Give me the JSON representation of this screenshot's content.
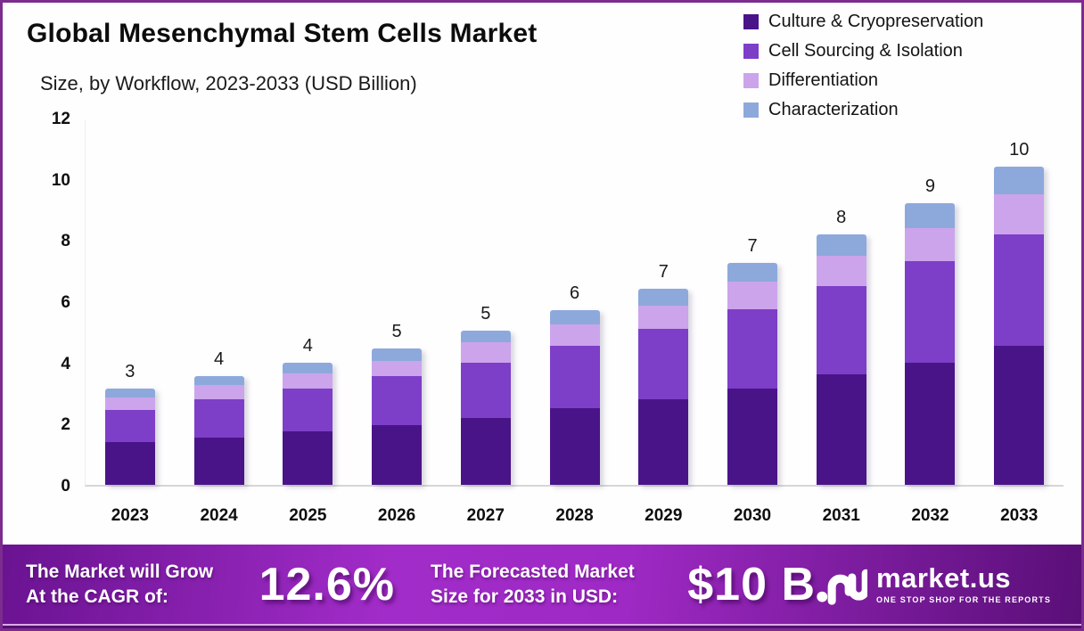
{
  "header": {
    "title": "Global Mesenchymal Stem Cells Market",
    "subtitle": "Size, by Workflow, 2023-2033 (USD Billion)"
  },
  "chart_data": {
    "type": "bar",
    "stacked": true,
    "title": "Global Mesenchymal Stem Cells Market",
    "subtitle": "Size, by Workflow, 2023-2033 (USD Billion)",
    "unit": "USD Billion",
    "categories": [
      "2023",
      "2024",
      "2025",
      "2026",
      "2027",
      "2028",
      "2029",
      "2030",
      "2031",
      "2032",
      "2033"
    ],
    "series": [
      {
        "name": "Culture & Cryopreservation",
        "color": "#4A1489",
        "values": [
          1.4,
          1.55,
          1.75,
          1.95,
          2.2,
          2.5,
          2.8,
          3.15,
          3.6,
          4.0,
          4.55
        ]
      },
      {
        "name": "Cell Sourcing & Isolation",
        "color": "#7D3EC8",
        "values": [
          1.05,
          1.25,
          1.4,
          1.6,
          1.8,
          2.05,
          2.3,
          2.6,
          2.9,
          3.3,
          3.65
        ]
      },
      {
        "name": "Differentiation",
        "color": "#CCA4EB",
        "values": [
          0.4,
          0.45,
          0.5,
          0.5,
          0.65,
          0.7,
          0.75,
          0.9,
          1.0,
          1.1,
          1.3
        ]
      },
      {
        "name": "Characterization",
        "color": "#8DA9DC",
        "values": [
          0.3,
          0.3,
          0.35,
          0.4,
          0.4,
          0.45,
          0.55,
          0.6,
          0.7,
          0.8,
          0.9
        ]
      }
    ],
    "total_labels": [
      "3",
      "4",
      "4",
      "5",
      "5",
      "6",
      "7",
      "7",
      "8",
      "9",
      "10"
    ],
    "ylim": [
      0,
      12
    ],
    "yticks": [
      0,
      2,
      4,
      6,
      8,
      10,
      12
    ],
    "grid": false,
    "legend_position": "top-right"
  },
  "banner": {
    "cagr_label_line1": "The Market will Grow",
    "cagr_label_line2": "At the CAGR of:",
    "cagr_value": "12.6%",
    "forecast_label_line1": "The Forecasted Market",
    "forecast_label_line2": "Size for 2033 in USD:",
    "forecast_value": "$10 B",
    "logo_text": "market.us",
    "logo_tagline": "ONE STOP SHOP FOR THE REPORTS"
  },
  "colors": {
    "frame_border": "#7b2c8e",
    "banner_gradient_left": "#6a1391",
    "banner_gradient_center": "#a22cc9",
    "banner_gradient_right": "#5a0f78",
    "bottom_strip": "#550f70",
    "axis_line": "#d6d6d6"
  }
}
